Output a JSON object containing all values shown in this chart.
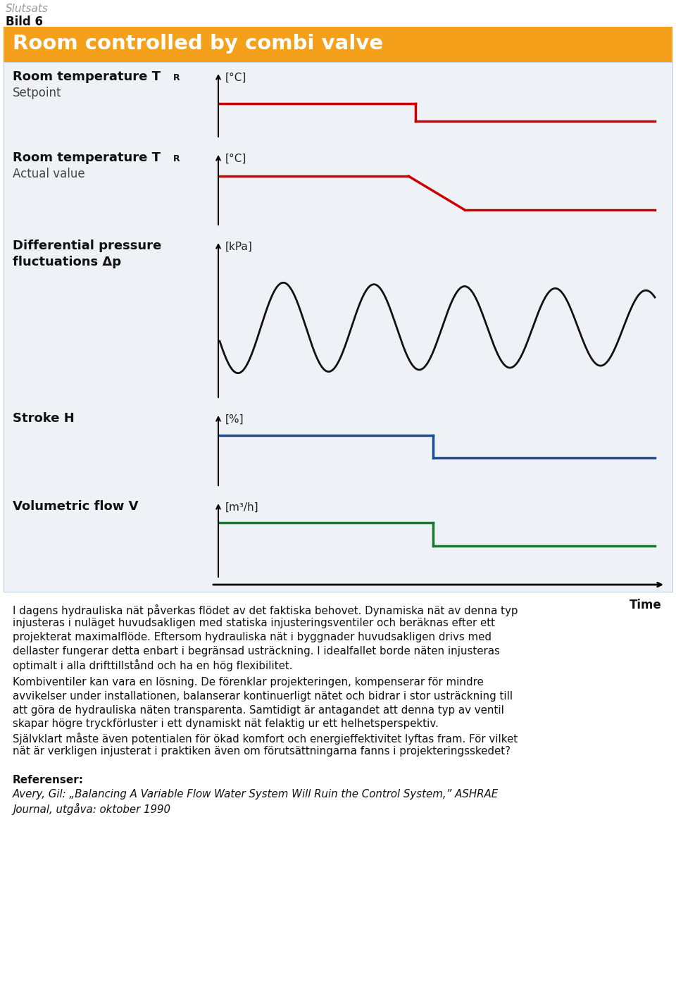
{
  "title_top1": "Slutsats",
  "title_top2": "Bild 6",
  "header_title": "Room controlled by combi valve",
  "header_bg": "#F5A01A",
  "header_text_color": "#FFFFFF",
  "bg_color": "#FFFFFF",
  "panel_bg": "#EEF2F7",
  "panel_border": "#BBCCDD",
  "setpoint_color": "#CC0000",
  "actual_color": "#CC0000",
  "pressure_color": "#111111",
  "stroke_color": "#1A4E96",
  "flow_color": "#1A7A30",
  "body_text_para1": [
    "I dagens hydrauliska nät påverkas flödet av det faktiska behovet. Dynamiska nät av denna typ",
    "injusteras i nuläget huvudsakligen med statiska injusteringsventiler och beräknas efter ett",
    "projekterat maximalflöde. Eftersom hydrauliska nät i byggnader huvudsakligen drivs med",
    "dellaster fungerar detta enbart i begränsad usträckning. I idealfallet borde näten injusteras",
    "optimalt i alla drifttillstånd och ha en hög flexibilitet."
  ],
  "body_text_para2": [
    "Kombiventiler kan vara en lösning. De förenklar projekteringen, kompenserar för mindre",
    "avvikelser under installationen, balanserar kontinuerligt nätet och bidrar i stor usträckning till",
    "att göra de hydrauliska näten transparenta. Samtidigt är antagandet att denna typ av ventil",
    "skapar högre tryckförluster i ett dynamiskt nät felaktig ur ett helhetsperspektiv.",
    "Självklart måste även potentialen för ökad komfort och energieffektivitet lyftas fram. För vilket",
    "nät är verkligen injusterat i praktiken även om förutsättningarna fanns i projekteringsskedet?"
  ],
  "ref_title": "Referenser:",
  "ref_line1": "Avery, Gil: „Balancing A Variable Flow Water System Will Ruin the Control System,” ASHRAE",
  "ref_line2": "Journal, utgåva: oktober 1990"
}
